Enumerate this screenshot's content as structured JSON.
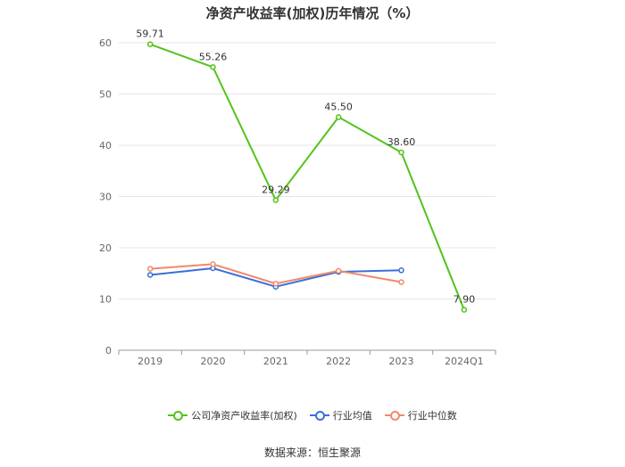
{
  "chart_data": {
    "type": "line",
    "title": "净资产收益率(加权)历年情况（%）",
    "categories": [
      "2019",
      "2020",
      "2021",
      "2022",
      "2023",
      "2024Q1"
    ],
    "yticks": [
      "0",
      "10",
      "20",
      "30",
      "40",
      "50",
      "60"
    ],
    "ylim": [
      0,
      60
    ],
    "grid": true,
    "legend_position": "bottom",
    "series": [
      {
        "name": "公司净资产收益率(加权)",
        "color": "#52c41a",
        "values": [
          59.71,
          55.26,
          29.29,
          45.5,
          38.6,
          7.9
        ],
        "labels": [
          "59.71",
          "55.26",
          "29.29",
          "45.50",
          "38.60",
          "7.90"
        ]
      },
      {
        "name": "行业均值",
        "color": "#3a6fd8",
        "values": [
          14.7,
          16.0,
          12.4,
          15.3,
          15.6,
          null
        ]
      },
      {
        "name": "行业中位数",
        "color": "#f08a6b",
        "values": [
          15.9,
          16.8,
          13.0,
          15.5,
          13.3,
          null
        ]
      }
    ]
  },
  "source": "数据来源：恒生聚源"
}
